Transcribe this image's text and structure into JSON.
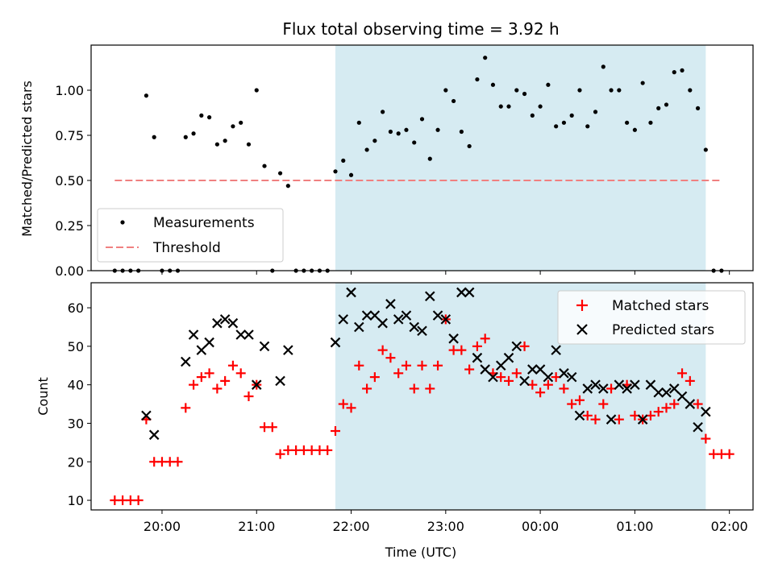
{
  "figure": {
    "title": "Flux total observing time = 3.92 h"
  },
  "chart_data": [
    {
      "type": "scatter",
      "title": "Flux total observing time = 3.92 h",
      "xlabel": "",
      "ylabel": "Matched/Predicted stars",
      "xlim": [
        "19:15",
        "02:15"
      ],
      "ylim": [
        0.0,
        1.25
      ],
      "yticks": [
        "0.00",
        "0.25",
        "0.50",
        "0.75",
        "1.00"
      ],
      "ytick_values": [
        0.0,
        0.25,
        0.5,
        0.75,
        1.0
      ],
      "shaded_interval": {
        "start": "21:50",
        "end": "01:45",
        "color": "#add8e6"
      },
      "legend": {
        "placement": "lower-left",
        "entries": [
          "Measurements",
          "Threshold"
        ]
      },
      "threshold": {
        "name": "Threshold",
        "value": 0.5,
        "x_start": "19:30",
        "x_end": "01:55",
        "color": "#f08080",
        "style": "dashed"
      },
      "series": [
        {
          "name": "Measurements",
          "color": "#000000",
          "marker": "dot",
          "points": [
            [
              "19:30",
              0.0
            ],
            [
              "19:35",
              0.0
            ],
            [
              "19:40",
              0.0
            ],
            [
              "19:45",
              0.0
            ],
            [
              "19:50",
              0.97
            ],
            [
              "19:55",
              0.74
            ],
            [
              "20:00",
              0.0
            ],
            [
              "20:05",
              0.0
            ],
            [
              "20:10",
              0.0
            ],
            [
              "20:15",
              0.74
            ],
            [
              "20:20",
              0.76
            ],
            [
              "20:25",
              0.86
            ],
            [
              "20:30",
              0.85
            ],
            [
              "20:35",
              0.7
            ],
            [
              "20:40",
              0.72
            ],
            [
              "20:45",
              0.8
            ],
            [
              "20:50",
              0.82
            ],
            [
              "20:55",
              0.7
            ],
            [
              "21:00",
              1.0
            ],
            [
              "21:05",
              0.58
            ],
            [
              "21:10",
              0.0
            ],
            [
              "21:15",
              0.54
            ],
            [
              "21:20",
              0.47
            ],
            [
              "21:25",
              0.0
            ],
            [
              "21:30",
              0.0
            ],
            [
              "21:35",
              0.0
            ],
            [
              "21:40",
              0.0
            ],
            [
              "21:45",
              0.0
            ],
            [
              "21:50",
              0.55
            ],
            [
              "21:55",
              0.61
            ],
            [
              "22:00",
              0.53
            ],
            [
              "22:05",
              0.82
            ],
            [
              "22:10",
              0.67
            ],
            [
              "22:15",
              0.72
            ],
            [
              "22:20",
              0.88
            ],
            [
              "22:25",
              0.77
            ],
            [
              "22:30",
              0.76
            ],
            [
              "22:35",
              0.78
            ],
            [
              "22:40",
              0.71
            ],
            [
              "22:45",
              0.84
            ],
            [
              "22:50",
              0.62
            ],
            [
              "22:55",
              0.78
            ],
            [
              "23:00",
              1.0
            ],
            [
              "23:05",
              0.94
            ],
            [
              "23:10",
              0.77
            ],
            [
              "23:15",
              0.69
            ],
            [
              "23:20",
              1.06
            ],
            [
              "23:25",
              1.18
            ],
            [
              "23:30",
              1.03
            ],
            [
              "23:35",
              0.91
            ],
            [
              "23:40",
              0.91
            ],
            [
              "23:45",
              1.0
            ],
            [
              "23:50",
              0.98
            ],
            [
              "23:55",
              0.86
            ],
            [
              "00:00",
              0.91
            ],
            [
              "00:05",
              1.03
            ],
            [
              "00:10",
              0.8
            ],
            [
              "00:15",
              0.82
            ],
            [
              "00:20",
              0.86
            ],
            [
              "00:25",
              1.0
            ],
            [
              "00:30",
              0.8
            ],
            [
              "00:35",
              0.88
            ],
            [
              "00:40",
              1.13
            ],
            [
              "00:45",
              1.0
            ],
            [
              "00:50",
              1.0
            ],
            [
              "00:55",
              0.82
            ],
            [
              "01:00",
              0.78
            ],
            [
              "01:05",
              1.04
            ],
            [
              "01:10",
              0.82
            ],
            [
              "01:15",
              0.9
            ],
            [
              "01:20",
              0.92
            ],
            [
              "01:25",
              1.1
            ],
            [
              "01:30",
              1.11
            ],
            [
              "01:35",
              1.0
            ],
            [
              "01:40",
              0.9
            ],
            [
              "01:45",
              0.67
            ],
            [
              "01:50",
              0.0
            ],
            [
              "01:55",
              0.0
            ]
          ]
        }
      ]
    },
    {
      "type": "scatter",
      "title": "",
      "xlabel": "Time (UTC)",
      "ylabel": "Count",
      "xlim": [
        "19:15",
        "02:15"
      ],
      "ylim": [
        7.5,
        66.5
      ],
      "xticks": [
        "20:00",
        "21:00",
        "22:00",
        "23:00",
        "00:00",
        "01:00",
        "02:00"
      ],
      "yticks": [
        "10",
        "20",
        "30",
        "40",
        "50",
        "60"
      ],
      "ytick_values": [
        10,
        20,
        30,
        40,
        50,
        60
      ],
      "shaded_interval": {
        "start": "21:50",
        "end": "01:45",
        "color": "#add8e6"
      },
      "legend": {
        "placement": "top-right",
        "entries": [
          "Matched stars",
          "Predicted stars"
        ]
      },
      "series": [
        {
          "name": "Matched stars",
          "color": "#ff0000",
          "marker": "plus",
          "points": [
            [
              "19:30",
              10
            ],
            [
              "19:35",
              10
            ],
            [
              "19:40",
              10
            ],
            [
              "19:45",
              10
            ],
            [
              "19:50",
              31
            ],
            [
              "19:55",
              20
            ],
            [
              "20:00",
              20
            ],
            [
              "20:05",
              20
            ],
            [
              "20:10",
              20
            ],
            [
              "20:15",
              34
            ],
            [
              "20:20",
              40
            ],
            [
              "20:25",
              42
            ],
            [
              "20:30",
              43
            ],
            [
              "20:35",
              39
            ],
            [
              "20:40",
              41
            ],
            [
              "20:45",
              45
            ],
            [
              "20:50",
              43
            ],
            [
              "20:55",
              37
            ],
            [
              "21:00",
              40
            ],
            [
              "21:05",
              29
            ],
            [
              "21:10",
              29
            ],
            [
              "21:15",
              22
            ],
            [
              "21:20",
              23
            ],
            [
              "21:25",
              23
            ],
            [
              "21:30",
              23
            ],
            [
              "21:35",
              23
            ],
            [
              "21:40",
              23
            ],
            [
              "21:45",
              23
            ],
            [
              "21:50",
              28
            ],
            [
              "21:55",
              35
            ],
            [
              "22:00",
              34
            ],
            [
              "22:05",
              45
            ],
            [
              "22:10",
              39
            ],
            [
              "22:15",
              42
            ],
            [
              "22:20",
              49
            ],
            [
              "22:25",
              47
            ],
            [
              "22:30",
              43
            ],
            [
              "22:35",
              45
            ],
            [
              "22:40",
              39
            ],
            [
              "22:45",
              45
            ],
            [
              "22:50",
              39
            ],
            [
              "22:55",
              45
            ],
            [
              "23:00",
              57
            ],
            [
              "23:05",
              49
            ],
            [
              "23:10",
              49
            ],
            [
              "23:15",
              44
            ],
            [
              "23:20",
              50
            ],
            [
              "23:25",
              52
            ],
            [
              "23:30",
              43
            ],
            [
              "23:35",
              42
            ],
            [
              "23:40",
              41
            ],
            [
              "23:45",
              43
            ],
            [
              "23:50",
              50
            ],
            [
              "23:55",
              40
            ],
            [
              "00:00",
              38
            ],
            [
              "00:05",
              40
            ],
            [
              "00:10",
              42
            ],
            [
              "00:15",
              39
            ],
            [
              "00:20",
              35
            ],
            [
              "00:25",
              36
            ],
            [
              "00:30",
              32
            ],
            [
              "00:35",
              31
            ],
            [
              "00:40",
              35
            ],
            [
              "00:45",
              39
            ],
            [
              "00:50",
              31
            ],
            [
              "00:55",
              40
            ],
            [
              "01:00",
              32
            ],
            [
              "01:05",
              31
            ],
            [
              "01:10",
              32
            ],
            [
              "01:15",
              33
            ],
            [
              "01:20",
              34
            ],
            [
              "01:25",
              35
            ],
            [
              "01:30",
              43
            ],
            [
              "01:35",
              41
            ],
            [
              "01:40",
              35
            ],
            [
              "01:45",
              26
            ],
            [
              "01:50",
              22
            ],
            [
              "01:55",
              22
            ],
            [
              "02:00",
              22
            ]
          ]
        },
        {
          "name": "Predicted stars",
          "color": "#000000",
          "marker": "x",
          "points": [
            [
              "19:50",
              32
            ],
            [
              "19:55",
              27
            ],
            [
              "20:15",
              46
            ],
            [
              "20:20",
              53
            ],
            [
              "20:25",
              49
            ],
            [
              "20:30",
              51
            ],
            [
              "20:35",
              56
            ],
            [
              "20:40",
              57
            ],
            [
              "20:45",
              56
            ],
            [
              "20:50",
              53
            ],
            [
              "20:55",
              53
            ],
            [
              "21:00",
              40
            ],
            [
              "21:05",
              50
            ],
            [
              "21:15",
              41
            ],
            [
              "21:20",
              49
            ],
            [
              "21:50",
              51
            ],
            [
              "21:55",
              57
            ],
            [
              "22:00",
              64
            ],
            [
              "22:05",
              55
            ],
            [
              "22:10",
              58
            ],
            [
              "22:15",
              58
            ],
            [
              "22:20",
              56
            ],
            [
              "22:25",
              61
            ],
            [
              "22:30",
              57
            ],
            [
              "22:35",
              58
            ],
            [
              "22:40",
              55
            ],
            [
              "22:45",
              54
            ],
            [
              "22:50",
              63
            ],
            [
              "22:55",
              58
            ],
            [
              "23:00",
              57
            ],
            [
              "23:05",
              52
            ],
            [
              "23:10",
              64
            ],
            [
              "23:15",
              64
            ],
            [
              "23:20",
              47
            ],
            [
              "23:25",
              44
            ],
            [
              "23:30",
              42
            ],
            [
              "23:35",
              45
            ],
            [
              "23:40",
              47
            ],
            [
              "23:45",
              50
            ],
            [
              "23:50",
              41
            ],
            [
              "23:55",
              44
            ],
            [
              "00:00",
              44
            ],
            [
              "00:05",
              42
            ],
            [
              "00:10",
              49
            ],
            [
              "00:15",
              43
            ],
            [
              "00:20",
              42
            ],
            [
              "00:25",
              32
            ],
            [
              "00:30",
              39
            ],
            [
              "00:35",
              40
            ],
            [
              "00:40",
              39
            ],
            [
              "00:45",
              31
            ],
            [
              "00:50",
              40
            ],
            [
              "00:55",
              39
            ],
            [
              "01:00",
              40
            ],
            [
              "01:05",
              31
            ],
            [
              "01:10",
              40
            ],
            [
              "01:15",
              38
            ],
            [
              "01:20",
              38
            ],
            [
              "01:25",
              39
            ],
            [
              "01:30",
              37
            ],
            [
              "01:35",
              35
            ],
            [
              "01:40",
              29
            ],
            [
              "01:45",
              33
            ]
          ]
        }
      ]
    }
  ]
}
